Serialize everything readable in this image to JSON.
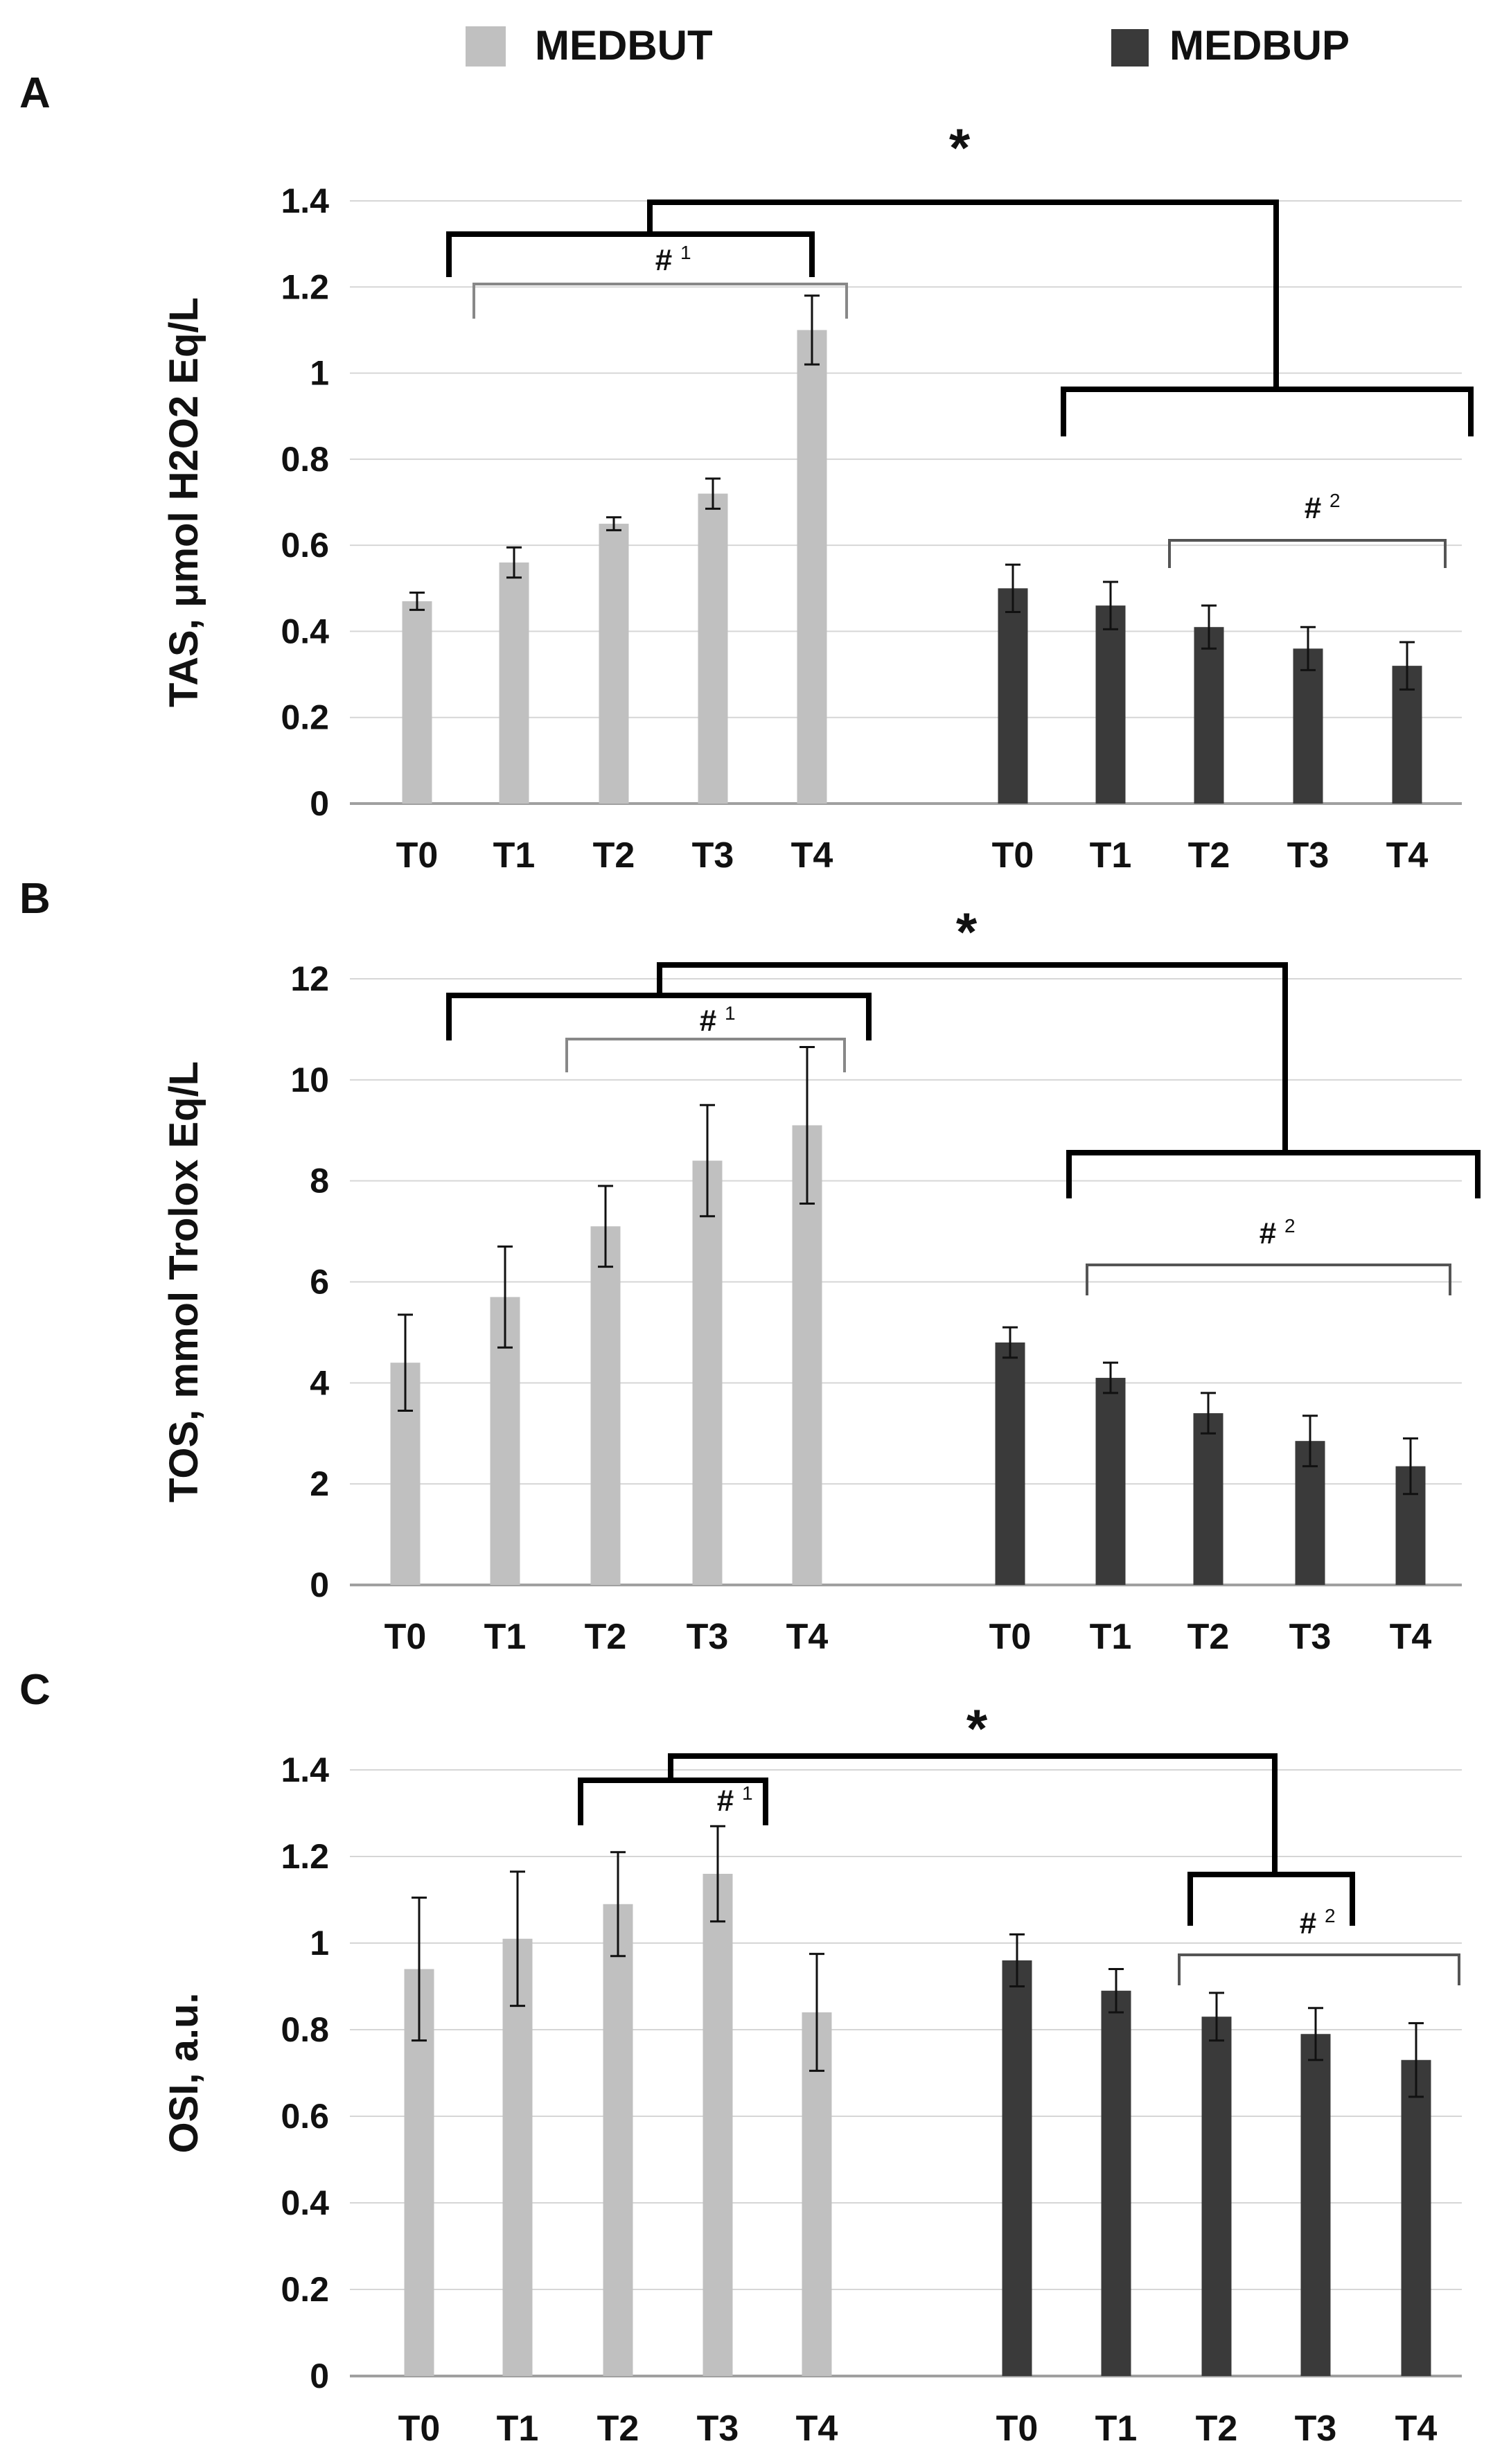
{
  "legend": [
    {
      "label": "MEDBUT",
      "color": "#c0c0c0"
    },
    {
      "label": "MEDBUP",
      "color": "#3a3a3a"
    }
  ],
  "chart_data": [
    {
      "type": "bar",
      "panel_label": "A",
      "ylabel": "TAS, μmol H2O2 Eq/L",
      "ylim": [
        0,
        1.4
      ],
      "yticks": [
        0,
        0.2,
        0.4,
        0.6,
        0.8,
        1,
        1.2,
        1.4
      ],
      "categories": [
        "T0",
        "T1",
        "T2",
        "T3",
        "T4"
      ],
      "series": [
        {
          "name": "MEDBUT",
          "values": [
            0.47,
            0.56,
            0.65,
            0.72,
            1.1
          ],
          "errors": [
            0.02,
            0.035,
            0.015,
            0.035,
            0.08
          ]
        },
        {
          "name": "MEDBUP",
          "values": [
            0.5,
            0.46,
            0.41,
            0.36,
            0.32
          ],
          "errors": [
            0.055,
            0.055,
            0.05,
            0.05,
            0.055
          ]
        }
      ],
      "annotations": {
        "star": "*",
        "hash1": "#",
        "hash1_sup": "1",
        "hash2": "#",
        "hash2_sup": "2"
      }
    },
    {
      "type": "bar",
      "panel_label": "B",
      "ylabel": "TOS, mmol Trolox Eq/L",
      "ylim": [
        0,
        12
      ],
      "yticks": [
        0,
        2,
        4,
        6,
        8,
        10,
        12
      ],
      "categories": [
        "T0",
        "T1",
        "T2",
        "T3",
        "T4"
      ],
      "series": [
        {
          "name": "MEDBUT",
          "values": [
            4.4,
            5.7,
            7.1,
            8.4,
            9.1
          ],
          "errors": [
            0.95,
            1.0,
            0.8,
            1.1,
            1.55
          ]
        },
        {
          "name": "MEDBUP",
          "values": [
            4.8,
            4.1,
            3.4,
            2.85,
            2.35
          ],
          "errors": [
            0.3,
            0.3,
            0.4,
            0.5,
            0.55
          ]
        }
      ],
      "annotations": {
        "star": "*",
        "hash1": "#",
        "hash1_sup": "1",
        "hash2": "#",
        "hash2_sup": "2"
      }
    },
    {
      "type": "bar",
      "panel_label": "C",
      "ylabel": "OSI, a.u.",
      "ylim": [
        0,
        1.4
      ],
      "yticks": [
        0,
        0.2,
        0.4,
        0.6,
        0.8,
        1,
        1.2,
        1.4
      ],
      "categories": [
        "T0",
        "T1",
        "T2",
        "T3",
        "T4"
      ],
      "series": [
        {
          "name": "MEDBUT",
          "values": [
            0.94,
            1.01,
            1.09,
            1.16,
            0.84
          ],
          "errors": [
            0.165,
            0.155,
            0.12,
            0.11,
            0.135
          ]
        },
        {
          "name": "MEDBUP",
          "values": [
            0.96,
            0.89,
            0.83,
            0.79,
            0.73
          ],
          "errors": [
            0.06,
            0.05,
            0.055,
            0.06,
            0.085
          ]
        }
      ],
      "annotations": {
        "star": "*",
        "hash1": "#",
        "hash1_sup": "1",
        "hash2": "#",
        "hash2_sup": "2"
      }
    }
  ]
}
